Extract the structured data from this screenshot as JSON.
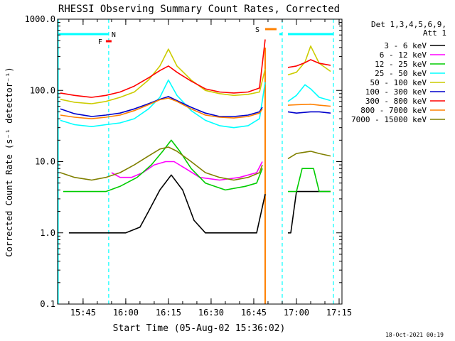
{
  "chart_data": {
    "type": "line",
    "title": "RHESSI Observing Summary Count Rates, Corrected",
    "xlabel": "Start Time (05-Aug-02 15:36:02)",
    "ylabel": "Corrected Count Rate (s⁻¹ detector⁻¹)",
    "yscale": "log",
    "ylim": [
      0.1,
      1000
    ],
    "y_ticks": [
      {
        "value": 1000,
        "label": "1000.0"
      },
      {
        "value": 100,
        "label": "100.0"
      },
      {
        "value": 10,
        "label": "10.0"
      },
      {
        "value": 1,
        "label": "1.0"
      },
      {
        "value": 0.1,
        "label": "0.1"
      }
    ],
    "xlim": [
      "15:36:02",
      "17:16"
    ],
    "x_ticks": [
      "15:45",
      "16:00",
      "16:15",
      "16:30",
      "16:45",
      "17:00",
      "17:15"
    ],
    "legend_header": [
      "Det 1,3,4,5,6,9,",
      "Att 1"
    ],
    "legend_position": "right",
    "gaps": [
      [
        "16:49",
        "16:56"
      ]
    ],
    "series": [
      {
        "name": "3 - 6 keV",
        "color": "#000000",
        "points": [
          [
            "15:40",
            1.0
          ],
          [
            "15:49",
            1.0
          ],
          [
            "15:55",
            1.0
          ],
          [
            "16:00",
            1.0
          ],
          [
            "16:05",
            1.2
          ],
          [
            "16:08",
            2.0
          ],
          [
            "16:12",
            4.0
          ],
          [
            "16:16",
            6.5
          ],
          [
            "16:20",
            4.0
          ],
          [
            "16:24",
            1.5
          ],
          [
            "16:28",
            1.0
          ],
          [
            "16:35",
            1.0
          ],
          [
            "16:42",
            1.0
          ],
          [
            "16:46",
            1.0
          ],
          [
            "16:49",
            3.5
          ],
          [
            "16:57",
            1.0
          ],
          [
            "16:58",
            1.0
          ],
          [
            "17:00",
            3.8
          ],
          [
            "17:10",
            3.8
          ],
          [
            "17:12",
            3.8
          ]
        ]
      },
      {
        "name": "6 - 12 keV",
        "color": "#ff00ff",
        "points": [
          [
            "15:55",
            7.0
          ],
          [
            "15:58",
            6.0
          ],
          [
            "16:02",
            6.0
          ],
          [
            "16:06",
            7.0
          ],
          [
            "16:10",
            9.0
          ],
          [
            "16:14",
            10.0
          ],
          [
            "16:17",
            10.0
          ],
          [
            "16:21",
            8.0
          ],
          [
            "16:26",
            6.0
          ],
          [
            "16:33",
            5.5
          ],
          [
            "16:40",
            6.0
          ],
          [
            "16:46",
            7.0
          ],
          [
            "16:48",
            10.0
          ]
        ]
      },
      {
        "name": "12 - 25 keV",
        "color": "#00cc00",
        "points": [
          [
            "15:38",
            3.8
          ],
          [
            "15:47",
            3.8
          ],
          [
            "15:53",
            3.8
          ],
          [
            "15:58",
            4.5
          ],
          [
            "16:04",
            6.0
          ],
          [
            "16:09",
            9.0
          ],
          [
            "16:13",
            14.0
          ],
          [
            "16:16",
            20.0
          ],
          [
            "16:19",
            14.0
          ],
          [
            "16:23",
            8.0
          ],
          [
            "16:28",
            5.0
          ],
          [
            "16:35",
            4.0
          ],
          [
            "16:42",
            4.5
          ],
          [
            "16:46",
            5.0
          ],
          [
            "16:48",
            8.0
          ],
          [
            "16:57",
            3.8
          ],
          [
            "17:00",
            3.8
          ],
          [
            "17:02",
            8.0
          ],
          [
            "17:06",
            8.0
          ],
          [
            "17:08",
            3.8
          ],
          [
            "17:12",
            3.8
          ]
        ]
      },
      {
        "name": "25 - 50 keV",
        "color": "#00ffff",
        "points": [
          [
            "15:37",
            38
          ],
          [
            "15:42",
            33
          ],
          [
            "15:48",
            31
          ],
          [
            "15:53",
            33
          ],
          [
            "15:58",
            35
          ],
          [
            "16:03",
            40
          ],
          [
            "16:08",
            55
          ],
          [
            "16:12",
            80
          ],
          [
            "16:15",
            140
          ],
          [
            "16:18",
            85
          ],
          [
            "16:23",
            52
          ],
          [
            "16:28",
            38
          ],
          [
            "16:33",
            32
          ],
          [
            "16:38",
            30
          ],
          [
            "16:43",
            32
          ],
          [
            "16:47",
            40
          ],
          [
            "16:49",
            130
          ],
          [
            "16:57",
            70
          ],
          [
            "17:00",
            85
          ],
          [
            "17:03",
            120
          ],
          [
            "17:05",
            105
          ],
          [
            "17:08",
            80
          ],
          [
            "17:12",
            72
          ]
        ]
      },
      {
        "name": "50 - 100 keV",
        "color": "#cccc00",
        "points": [
          [
            "15:37",
            75
          ],
          [
            "15:42",
            68
          ],
          [
            "15:48",
            65
          ],
          [
            "15:53",
            70
          ],
          [
            "15:58",
            80
          ],
          [
            "16:03",
            95
          ],
          [
            "16:08",
            140
          ],
          [
            "16:12",
            220
          ],
          [
            "16:15",
            380
          ],
          [
            "16:18",
            220
          ],
          [
            "16:23",
            140
          ],
          [
            "16:28",
            100
          ],
          [
            "16:33",
            90
          ],
          [
            "16:38",
            85
          ],
          [
            "16:43",
            88
          ],
          [
            "16:47",
            95
          ],
          [
            "16:49",
            200
          ],
          [
            "16:57",
            165
          ],
          [
            "17:00",
            180
          ],
          [
            "17:03",
            250
          ],
          [
            "17:05",
            420
          ],
          [
            "17:08",
            240
          ],
          [
            "17:12",
            185
          ]
        ]
      },
      {
        "name": "100 - 300 keV",
        "color": "#0000cc",
        "points": [
          [
            "15:37",
            55
          ],
          [
            "15:42",
            47
          ],
          [
            "15:48",
            43
          ],
          [
            "15:53",
            45
          ],
          [
            "15:58",
            48
          ],
          [
            "16:03",
            55
          ],
          [
            "16:08",
            65
          ],
          [
            "16:12",
            75
          ],
          [
            "16:15",
            82
          ],
          [
            "16:18",
            72
          ],
          [
            "16:23",
            58
          ],
          [
            "16:28",
            48
          ],
          [
            "16:33",
            43
          ],
          [
            "16:38",
            43
          ],
          [
            "16:43",
            45
          ],
          [
            "16:47",
            50
          ],
          [
            "16:48",
            58
          ],
          [
            "16:57",
            50
          ],
          [
            "17:00",
            48
          ],
          [
            "17:05",
            50
          ],
          [
            "17:08",
            50
          ],
          [
            "17:12",
            48
          ]
        ]
      },
      {
        "name": "300 - 800 keV",
        "color": "#ff0000",
        "points": [
          [
            "15:37",
            92
          ],
          [
            "15:42",
            85
          ],
          [
            "15:48",
            80
          ],
          [
            "15:53",
            85
          ],
          [
            "15:58",
            95
          ],
          [
            "16:03",
            115
          ],
          [
            "16:08",
            150
          ],
          [
            "16:12",
            190
          ],
          [
            "16:15",
            220
          ],
          [
            "16:18",
            180
          ],
          [
            "16:23",
            135
          ],
          [
            "16:28",
            105
          ],
          [
            "16:33",
            95
          ],
          [
            "16:38",
            92
          ],
          [
            "16:43",
            95
          ],
          [
            "16:47",
            108
          ],
          [
            "16:49",
            520
          ],
          [
            "16:57",
            210
          ],
          [
            "17:00",
            220
          ],
          [
            "17:03",
            245
          ],
          [
            "17:05",
            270
          ],
          [
            "17:08",
            240
          ],
          [
            "17:12",
            225
          ]
        ]
      },
      {
        "name": "800 - 7000 keV",
        "color": "#ff8000",
        "points": [
          [
            "15:37",
            45
          ],
          [
            "15:42",
            42
          ],
          [
            "15:48",
            40
          ],
          [
            "15:53",
            42
          ],
          [
            "15:58",
            45
          ],
          [
            "16:03",
            52
          ],
          [
            "16:08",
            63
          ],
          [
            "16:12",
            74
          ],
          [
            "16:15",
            78
          ],
          [
            "16:18",
            70
          ],
          [
            "16:23",
            55
          ],
          [
            "16:28",
            45
          ],
          [
            "16:33",
            42
          ],
          [
            "16:38",
            41
          ],
          [
            "16:43",
            43
          ],
          [
            "16:47",
            48
          ],
          [
            "16:48",
            55
          ],
          [
            "16:57",
            62
          ],
          [
            "17:00",
            63
          ],
          [
            "17:05",
            64
          ],
          [
            "17:08",
            62
          ],
          [
            "17:12",
            60
          ]
        ]
      },
      {
        "name": "7000 - 15000 keV",
        "color": "#808000",
        "points": [
          [
            "15:37",
            7.0
          ],
          [
            "15:42",
            6.0
          ],
          [
            "15:48",
            5.5
          ],
          [
            "15:53",
            6.0
          ],
          [
            "15:58",
            7.0
          ],
          [
            "16:03",
            9.0
          ],
          [
            "16:08",
            12.0
          ],
          [
            "16:12",
            15.0
          ],
          [
            "16:15",
            16.0
          ],
          [
            "16:18",
            14.0
          ],
          [
            "16:23",
            10.0
          ],
          [
            "16:28",
            7.0
          ],
          [
            "16:33",
            6.0
          ],
          [
            "16:38",
            5.5
          ],
          [
            "16:43",
            6.0
          ],
          [
            "16:47",
            7.0
          ],
          [
            "16:48",
            9.0
          ],
          [
            "16:57",
            11.0
          ],
          [
            "17:00",
            13.0
          ],
          [
            "17:05",
            14.0
          ],
          [
            "17:08",
            13.0
          ],
          [
            "17:12",
            12.0
          ]
        ]
      }
    ],
    "markers": [
      {
        "label": "N",
        "color": "#00ffff",
        "span": [
          "15:36",
          "15:54"
        ],
        "dashed_line_at": "15:54"
      },
      {
        "label": "F",
        "color": "#ff0000",
        "span": [
          "15:53",
          "15:55"
        ]
      },
      {
        "label": "S",
        "color": "#ff8000",
        "span": [
          "16:49",
          "16:53"
        ],
        "solid_line_at": "16:49"
      },
      {
        "label": "",
        "color": "#00ffff",
        "span": [
          "16:54",
          "16:55"
        ],
        "dashed_line_at": "16:55"
      },
      {
        "label": "",
        "color": "#00ffff",
        "span": [
          "16:57",
          "17:13"
        ],
        "dashed_line_at": "17:13"
      }
    ],
    "footer_date": "18-Oct-2021 00:19"
  }
}
